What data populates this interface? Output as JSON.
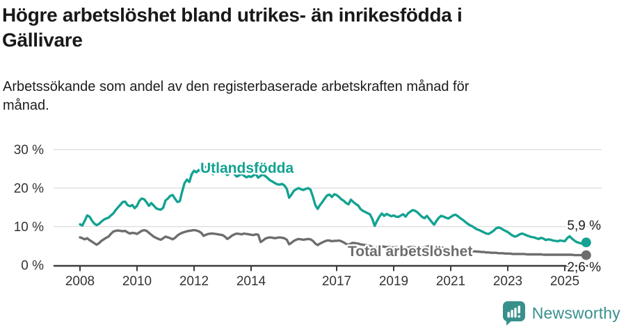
{
  "header": {
    "title": "Högre arbetslöshet bland utrikes- än inrikesfödda i Gällivare",
    "title_lines": [
      "Högre arbetslöshet bland utrikes- än inrikesfödda i",
      "Gällivare"
    ],
    "subtitle": "Arbetssökande som andel av den registerbaserade arbetskraften månad för månad."
  },
  "footer": {
    "brand": "Newsworthy",
    "brand_color": "#38908d"
  },
  "chart_data": {
    "type": "line",
    "title": "Högre arbetslöshet bland utrikes- än inrikesfödda i Gällivare",
    "subtitle": "Arbetssökande som andel av den registerbaserade arbetskraften månad för månad.",
    "unit": "%",
    "x_start": "2008-01",
    "x_end": "2025-10",
    "x_interval": "month",
    "ylim": [
      0,
      30
    ],
    "grid": true,
    "ytick_labels": [
      "0 %",
      "10 %",
      "20 %",
      "30 %"
    ],
    "xtick_labels": [
      "2008",
      "2010",
      "2012",
      "2014",
      "2017",
      "2019",
      "2021",
      "2023",
      "2025"
    ],
    "colors": {
      "gridline": "#dcdcdc",
      "axis": "#3a3a3a",
      "tick_text": "#333333",
      "end_label_text": "#1a1a1a"
    },
    "series": [
      {
        "name": "Utlandsfödda",
        "color": "#13a291",
        "end_label": "5,9 %",
        "end_value": 5.9,
        "values": [
          10.6,
          10.3,
          11.5,
          12.9,
          12.6,
          11.6,
          10.8,
          10.4,
          10.7,
          11.3,
          11.8,
          12.1,
          12.3,
          12.9,
          13.4,
          14.3,
          15.0,
          15.7,
          16.4,
          16.5,
          15.6,
          15.3,
          15.6,
          14.8,
          15.4,
          16.7,
          17.3,
          17.1,
          16.3,
          15.4,
          16.1,
          15.5,
          14.8,
          14.5,
          14.4,
          14.9,
          16.8,
          17.3,
          18.0,
          18.2,
          17.2,
          16.4,
          16.6,
          19.1,
          21.3,
          22.2,
          21.6,
          23.6,
          24.5,
          24.1,
          24.7,
          24.3,
          25.3,
          25.5,
          25.2,
          24.6,
          23.6,
          24.3,
          24.8,
          25.0,
          24.6,
          24.0,
          23.4,
          23.8,
          24.2,
          23.6,
          23.0,
          23.3,
          23.7,
          23.2,
          22.8,
          23.1,
          22.9,
          23.3,
          23.6,
          22.7,
          23.2,
          23.5,
          23.1,
          22.6,
          22.0,
          21.7,
          21.3,
          21.0,
          20.9,
          21.1,
          20.7,
          19.8,
          17.5,
          18.3,
          19.3,
          19.7,
          20.0,
          19.7,
          19.5,
          19.8,
          20.0,
          19.6,
          17.8,
          15.6,
          14.6,
          15.6,
          16.4,
          17.3,
          18.1,
          18.3,
          17.7,
          18.4,
          18.2,
          17.7,
          17.1,
          16.7,
          16.1,
          15.8,
          17.0,
          16.4,
          15.9,
          15.5,
          14.6,
          14.1,
          13.8,
          13.5,
          13.2,
          12.0,
          10.2,
          11.5,
          12.6,
          13.4,
          12.8,
          13.3,
          13.0,
          12.7,
          12.9,
          12.6,
          12.5,
          12.9,
          13.2,
          12.6,
          13.4,
          13.9,
          14.3,
          14.1,
          13.7,
          13.1,
          12.5,
          12.2,
          12.8,
          12.0,
          11.2,
          10.5,
          11.5,
          12.3,
          12.8,
          12.6,
          12.3,
          12.1,
          12.5,
          12.9,
          13.1,
          12.7,
          12.2,
          11.8,
          11.3,
          10.8,
          10.4,
          10.1,
          9.7,
          9.3,
          9.1,
          8.8,
          8.5,
          8.2,
          8.1,
          8.5,
          8.9,
          9.5,
          9.8,
          9.6,
          9.2,
          8.9,
          8.6,
          8.1,
          7.7,
          7.4,
          7.6,
          8.0,
          8.2,
          8.0,
          7.7,
          7.5,
          7.3,
          7.2,
          7.0,
          6.8,
          7.1,
          6.9,
          6.5,
          6.7,
          6.6,
          6.4,
          6.3,
          6.2,
          6.4,
          6.3,
          6.2,
          7.0,
          7.5,
          6.9,
          6.4,
          6.0,
          5.8,
          5.6,
          5.7,
          5.9
        ]
      },
      {
        "name": "Total arbetslöshet",
        "color": "#6d6d6d",
        "end_label": "2,6 %",
        "end_value": 2.6,
        "values": [
          7.2,
          7.0,
          6.7,
          7.0,
          6.5,
          6.1,
          5.7,
          5.3,
          5.7,
          6.3,
          6.7,
          7.1,
          7.4,
          8.1,
          8.7,
          8.9,
          9.0,
          8.9,
          8.8,
          8.9,
          8.5,
          8.2,
          8.4,
          8.3,
          8.1,
          8.5,
          8.9,
          9.1,
          8.9,
          8.4,
          7.9,
          7.4,
          7.1,
          6.8,
          6.6,
          7.0,
          7.4,
          7.2,
          7.0,
          6.7,
          7.1,
          7.7,
          8.1,
          8.4,
          8.6,
          8.8,
          8.9,
          9.0,
          9.1,
          9.0,
          8.8,
          8.4,
          7.6,
          7.9,
          8.1,
          8.2,
          8.2,
          8.1,
          8.0,
          7.9,
          7.8,
          7.4,
          6.8,
          7.2,
          7.7,
          8.0,
          8.2,
          8.1,
          8.0,
          8.2,
          8.1,
          8.0,
          7.9,
          7.8,
          8.0,
          7.9,
          6.0,
          6.4,
          6.9,
          7.1,
          7.2,
          7.1,
          7.0,
          7.1,
          7.2,
          7.1,
          7.0,
          6.6,
          5.4,
          5.8,
          6.3,
          6.6,
          6.8,
          6.7,
          6.6,
          6.7,
          6.8,
          6.7,
          6.3,
          5.6,
          5.2,
          5.6,
          5.9,
          6.2,
          6.4,
          6.4,
          6.2,
          6.3,
          6.3,
          6.4,
          6.2,
          5.9,
          5.5,
          5.3,
          5.6,
          5.8,
          5.7,
          5.6,
          5.4,
          5.3,
          5.2,
          5.1,
          5.0,
          4.7,
          4.4,
          4.6,
          4.8,
          4.9,
          4.8,
          4.7,
          4.7,
          4.6,
          4.6,
          4.7,
          4.6,
          4.5,
          4.3,
          4.4,
          4.6,
          4.7,
          4.7,
          4.6,
          4.6,
          4.5,
          4.5,
          4.6,
          4.8,
          5.0,
          4.9,
          4.8,
          4.8,
          4.7,
          4.6,
          4.5,
          4.4,
          4.4,
          4.4,
          4.3,
          4.2,
          4.1,
          4.0,
          3.9,
          3.9,
          3.8,
          3.7,
          3.6,
          3.6,
          3.5,
          3.5,
          3.4,
          3.4,
          3.3,
          3.3,
          3.2,
          3.2,
          3.2,
          3.1,
          3.1,
          3.1,
          3.0,
          3.0,
          3.0,
          2.9,
          2.9,
          2.9,
          2.9,
          2.9,
          2.9,
          2.8,
          2.8,
          2.8,
          2.8,
          2.8,
          2.8,
          2.8,
          2.7,
          2.7,
          2.7,
          2.7,
          2.7,
          2.7,
          2.7,
          2.7,
          2.7,
          2.7,
          2.7,
          2.7,
          2.7,
          2.6,
          2.6,
          2.6,
          2.6,
          2.6,
          2.6
        ]
      }
    ]
  }
}
